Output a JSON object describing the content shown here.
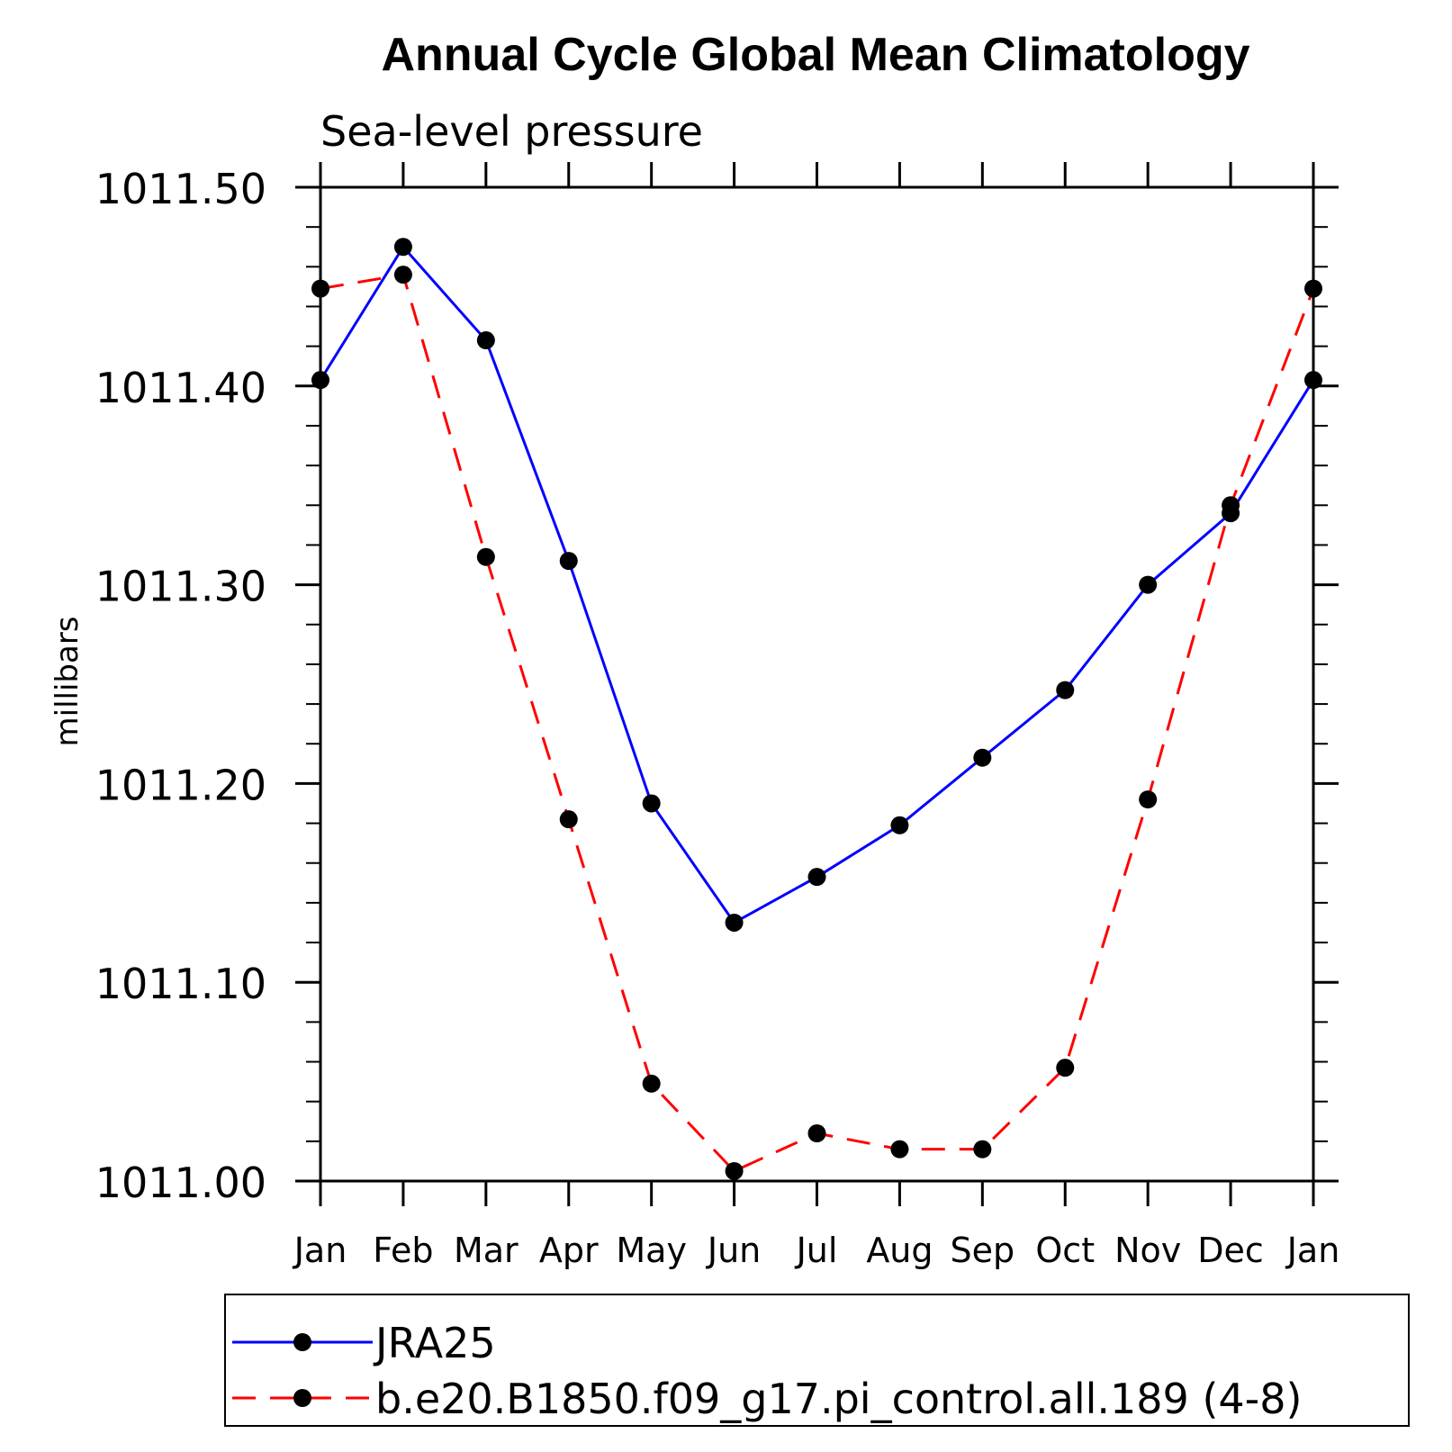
{
  "chart_data": {
    "type": "line",
    "title": "Annual Cycle Global Mean Climatology",
    "subtitle": "Sea-level pressure",
    "ylabel": "millibars",
    "xlabel": "",
    "categories": [
      "Jan",
      "Feb",
      "Mar",
      "Apr",
      "May",
      "Jun",
      "Jul",
      "Aug",
      "Sep",
      "Oct",
      "Nov",
      "Dec",
      "Jan"
    ],
    "ylim": [
      1011.0,
      1011.5
    ],
    "yticks": [
      "1011.00",
      "1011.10",
      "1011.20",
      "1011.30",
      "1011.40",
      "1011.50"
    ],
    "ytick_values": [
      1011.0,
      1011.1,
      1011.2,
      1011.3,
      1011.4,
      1011.5
    ],
    "grid": false,
    "legend_position": "bottom",
    "series": [
      {
        "name": "JRA25",
        "color": "#0000ff",
        "dash": "solid",
        "marker": "filled-circle",
        "values": [
          1011.403,
          1011.47,
          1011.423,
          1011.312,
          1011.19,
          1011.13,
          1011.153,
          1011.179,
          1011.213,
          1011.247,
          1011.3,
          1011.336,
          1011.403
        ]
      },
      {
        "name": "b.e20.B1850.f09_g17.pi_control.all.189 (4-8)",
        "color": "#ff0000",
        "dash": "dashed",
        "marker": "filled-circle",
        "values": [
          1011.449,
          1011.456,
          1011.314,
          1011.182,
          1011.049,
          1011.005,
          1011.024,
          1011.016,
          1011.016,
          1011.057,
          1011.192,
          1011.34,
          1011.449
        ]
      }
    ]
  }
}
